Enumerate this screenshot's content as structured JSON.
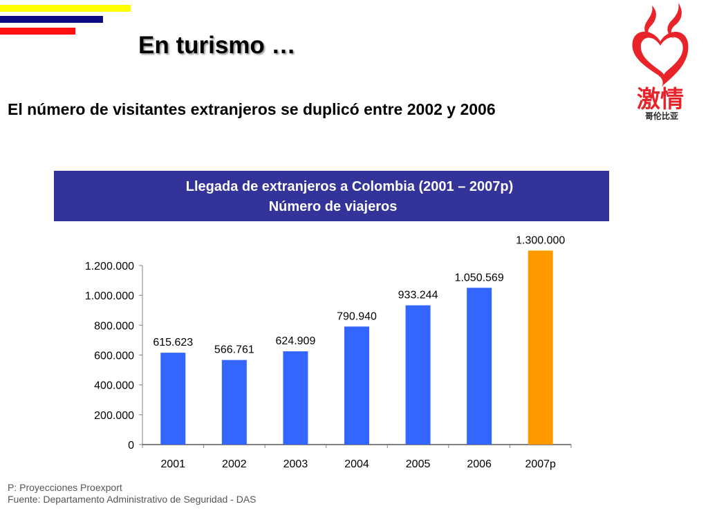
{
  "slide": {
    "title": "En turismo …",
    "subtitle": "El número de visitantes extranjeros se duplicó entre 2002 y 2006",
    "banner": {
      "line1": "Llegada de extranjeros a Colombia (2001 – 2007p)",
      "line2": "Número de viajeros",
      "color": "#333399"
    },
    "logo": {
      "icon": "colombia-passion-heart-logo",
      "main_text": "激情",
      "sub_text": "哥伦比亚",
      "color": "#e8242a"
    },
    "stripes": {
      "colors": [
        "#ffff00",
        "#0a0a82",
        "#ff1010"
      ]
    },
    "notes": [
      "P: Proyecciones Proexport",
      "Fuente: Departamento Administrativo de Seguridad - DAS"
    ]
  },
  "chart_data": {
    "type": "bar",
    "title": "Llegada de extranjeros a Colombia (2001 – 2007p)",
    "subtitle": "Número de viajeros",
    "xlabel": "",
    "ylabel": "",
    "categories": [
      "2001",
      "2002",
      "2003",
      "2004",
      "2005",
      "2006",
      "2007p"
    ],
    "values": [
      615623,
      566761,
      624909,
      790940,
      933244,
      1050569,
      1300000
    ],
    "value_labels": [
      "615.623",
      "566.761",
      "624.909",
      "790.940",
      "933.244",
      "1.050.569",
      "1.300.000"
    ],
    "bar_colors": [
      "#3366ff",
      "#3366ff",
      "#3366ff",
      "#3366ff",
      "#3366ff",
      "#3366ff",
      "#ff9900"
    ],
    "ylim": [
      0,
      1200000
    ],
    "yticks": [
      0,
      200000,
      400000,
      600000,
      800000,
      1000000,
      1200000
    ],
    "ytick_labels": [
      "0",
      "200.000",
      "400.000",
      "600.000",
      "800.000",
      "1.000.000",
      "1.200.000"
    ],
    "grid": false,
    "legend": "none"
  }
}
